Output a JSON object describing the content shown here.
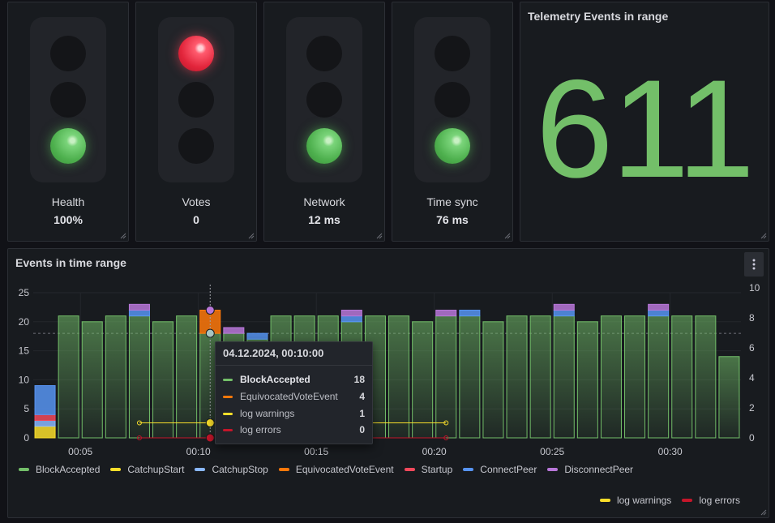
{
  "traffic_lights": [
    {
      "label": "Health",
      "value": "100%",
      "lit": 3,
      "color": "#56a64b"
    },
    {
      "label": "Votes",
      "value": "0",
      "lit": 1,
      "color": "#f2495c"
    },
    {
      "label": "Network",
      "value": "12 ms",
      "lit": 3,
      "color": "#56a64b"
    },
    {
      "label": "Time sync",
      "value": "76 ms",
      "lit": 3,
      "color": "#56a64b"
    }
  ],
  "stat": {
    "title": "Telemetry Events in range",
    "value": "611",
    "color": "#73bf69"
  },
  "events_panel": {
    "title": "Events in time range",
    "menu_icon": "kebab-vertical-icon"
  },
  "chart_data": {
    "type": "bar",
    "x_ticks": [
      "00:05",
      "00:10",
      "00:15",
      "00:20",
      "00:25",
      "00:30"
    ],
    "y_left": {
      "ticks": [
        "0",
        "5",
        "10",
        "15",
        "20",
        "25"
      ],
      "range": [
        0,
        25
      ]
    },
    "y_right": {
      "ticks": [
        "0",
        "2",
        "4",
        "6",
        "8",
        "10"
      ],
      "range": [
        0,
        10
      ]
    },
    "threshold_dashed_y": 18,
    "categories": [
      "00:03",
      "00:04",
      "00:05",
      "00:06",
      "00:07",
      "00:08",
      "00:09",
      "00:10",
      "00:11",
      "00:12",
      "00:13",
      "00:14",
      "00:15",
      "00:16",
      "00:17",
      "00:18",
      "00:19",
      "00:20",
      "00:21",
      "00:22",
      "00:23",
      "00:24",
      "00:25",
      "00:26",
      "00:27",
      "00:28",
      "00:29",
      "00:30",
      "00:31",
      "00:32"
    ],
    "series": [
      {
        "name": "BlockAccepted",
        "color": "#73bf69",
        "values": [
          0,
          21,
          20,
          21,
          21,
          20,
          21,
          18,
          18,
          17,
          21,
          21,
          21,
          20,
          21,
          21,
          20,
          21,
          21,
          20,
          21,
          21,
          21,
          20,
          21,
          21,
          21,
          21,
          21,
          14
        ]
      },
      {
        "name": "CatchupStart",
        "color": "#fade2a",
        "values": [
          2,
          0,
          0,
          0,
          0,
          0,
          0,
          0,
          0,
          0,
          0,
          0,
          0,
          0,
          0,
          0,
          0,
          0,
          0,
          0,
          0,
          0,
          0,
          0,
          0,
          0,
          0,
          0,
          0,
          0
        ]
      },
      {
        "name": "CatchupStop",
        "color": "#8ab8ff",
        "values": [
          1,
          0,
          0,
          0,
          0,
          0,
          0,
          0,
          0,
          0,
          0,
          0,
          0,
          0,
          0,
          0,
          0,
          0,
          0,
          0,
          0,
          0,
          0,
          0,
          0,
          0,
          0,
          0,
          0,
          0
        ]
      },
      {
        "name": "EquivocatedVoteEvent",
        "color": "#ff780a",
        "values": [
          0,
          0,
          0,
          0,
          0,
          0,
          0,
          4,
          0,
          0,
          0,
          0,
          0,
          0,
          0,
          0,
          0,
          0,
          0,
          0,
          0,
          0,
          0,
          0,
          0,
          0,
          0,
          0,
          0,
          0
        ]
      },
      {
        "name": "Startup",
        "color": "#f2495c",
        "values": [
          1,
          0,
          0,
          0,
          0,
          0,
          0,
          0,
          0,
          0,
          0,
          0,
          0,
          0,
          0,
          0,
          0,
          0,
          0,
          0,
          0,
          0,
          0,
          0,
          0,
          0,
          0,
          0,
          0,
          0
        ]
      },
      {
        "name": "ConnectPeer",
        "color": "#5794f2",
        "values": [
          5,
          0,
          0,
          0,
          1,
          0,
          0,
          0,
          0,
          1,
          0,
          0,
          0,
          1,
          0,
          0,
          0,
          0,
          1,
          0,
          0,
          0,
          1,
          0,
          0,
          0,
          1,
          0,
          0,
          0
        ]
      },
      {
        "name": "DisconnectPeer",
        "color": "#b877d9",
        "values": [
          0,
          0,
          0,
          0,
          1,
          0,
          0,
          0,
          1,
          0,
          0,
          0,
          0,
          1,
          0,
          0,
          0,
          1,
          0,
          0,
          0,
          0,
          1,
          0,
          0,
          0,
          1,
          0,
          0,
          0
        ]
      }
    ],
    "lines": [
      {
        "name": "log warnings",
        "color": "#fade2a",
        "axis": "right",
        "x": [
          "00:07",
          "00:20"
        ],
        "value": 1
      },
      {
        "name": "log errors",
        "color": "#c4162a",
        "axis": "right",
        "x": [
          "00:07",
          "00:20"
        ],
        "value": 0
      }
    ],
    "legend_bottom": [
      "log warnings",
      "log errors"
    ]
  },
  "tooltip": {
    "time": "04.12.2024, 00:10:00",
    "rows": [
      {
        "name": "BlockAccepted",
        "value": "18",
        "color": "#73bf69",
        "bold": true
      },
      {
        "name": "EquivocatedVoteEvent",
        "value": "4",
        "color": "#ff780a",
        "bold": false
      },
      {
        "name": "log warnings",
        "value": "1",
        "color": "#fade2a",
        "bold": false
      },
      {
        "name": "log errors",
        "value": "0",
        "color": "#c4162a",
        "bold": false
      }
    ]
  }
}
